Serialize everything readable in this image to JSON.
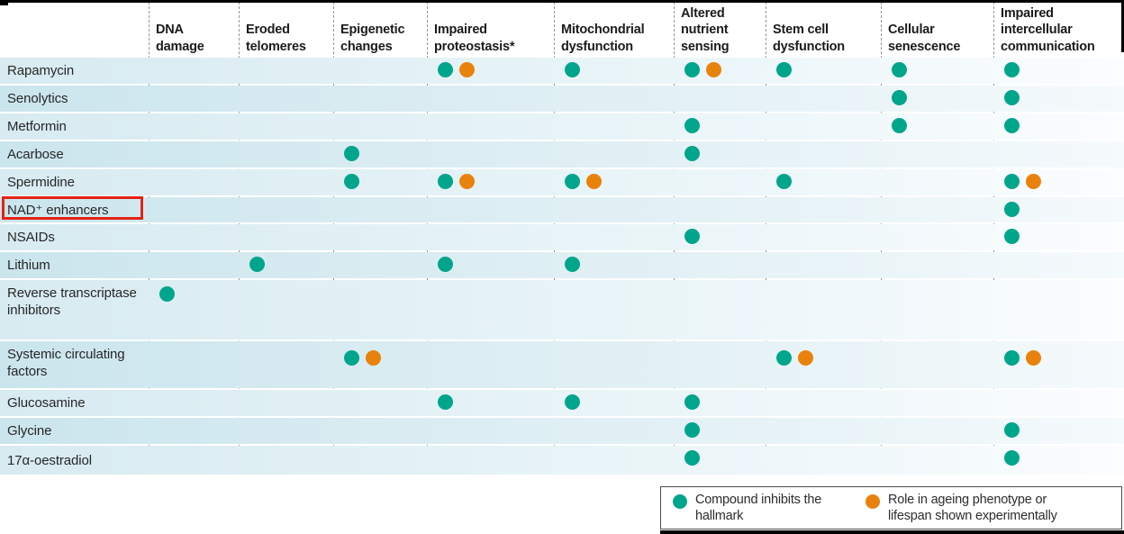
{
  "figure": {
    "description": "Matrix figure of compounds versus hallmarks of ageing, dots mark effects",
    "annotation": "red highlight box around NAD⁺ enhancers row label"
  },
  "colors": {
    "teal": "#00a58c",
    "orange": "#e8820c",
    "highlight_box_red": "#e42313"
  },
  "chart_data": {
    "type": "table",
    "title": "",
    "columns": [
      "DNA damage",
      "Eroded telomeres",
      "Epigenetic changes",
      "Impaired proteostasis*",
      "Mitochondrial dysfunction",
      "Altered nutrient sensing",
      "Stem cell dysfunction",
      "Cellular senescence",
      "Impaired intercellular communication"
    ],
    "rows": [
      {
        "label": "Rapamycin",
        "cells": [
          [],
          [],
          [],
          [
            "inhibits",
            "experimental"
          ],
          [
            "inhibits"
          ],
          [
            "inhibits",
            "experimental"
          ],
          [
            "inhibits"
          ],
          [
            "inhibits"
          ],
          [
            "inhibits"
          ]
        ]
      },
      {
        "label": "Senolytics",
        "cells": [
          [],
          [],
          [],
          [],
          [],
          [],
          [],
          [
            "inhibits"
          ],
          [
            "inhibits"
          ]
        ]
      },
      {
        "label": "Metformin",
        "cells": [
          [],
          [],
          [],
          [],
          [],
          [
            "inhibits"
          ],
          [],
          [
            "inhibits"
          ],
          [
            "inhibits"
          ]
        ]
      },
      {
        "label": "Acarbose",
        "cells": [
          [],
          [],
          [
            "inhibits"
          ],
          [],
          [],
          [
            "inhibits"
          ],
          [],
          [],
          []
        ]
      },
      {
        "label": "Spermidine",
        "cells": [
          [],
          [],
          [
            "inhibits"
          ],
          [
            "inhibits",
            "experimental"
          ],
          [
            "inhibits",
            "experimental"
          ],
          [],
          [
            "inhibits"
          ],
          [],
          [
            "inhibits",
            "experimental"
          ]
        ]
      },
      {
        "label": "NAD⁺ enhancers",
        "highlighted": true,
        "cells": [
          [],
          [],
          [],
          [],
          [],
          [],
          [],
          [],
          [
            "inhibits"
          ]
        ]
      },
      {
        "label": "NSAIDs",
        "cells": [
          [],
          [],
          [],
          [],
          [],
          [
            "inhibits"
          ],
          [],
          [],
          [
            "inhibits"
          ]
        ]
      },
      {
        "label": "Lithium",
        "cells": [
          [],
          [
            "inhibits"
          ],
          [],
          [
            "inhibits"
          ],
          [
            "inhibits"
          ],
          [],
          [],
          [],
          []
        ]
      },
      {
        "label": "Reverse transcriptase inhibitors",
        "cells": [
          [
            "inhibits"
          ],
          [],
          [],
          [],
          [],
          [],
          [],
          [],
          []
        ]
      },
      {
        "label": "Systemic circulating factors",
        "cells": [
          [],
          [],
          [
            "inhibits",
            "experimental"
          ],
          [],
          [],
          [],
          [
            "inhibits",
            "experimental"
          ],
          [],
          [
            "inhibits",
            "experimental"
          ]
        ]
      },
      {
        "label": "Glucosamine",
        "cells": [
          [],
          [],
          [],
          [
            "inhibits"
          ],
          [
            "inhibits"
          ],
          [
            "inhibits"
          ],
          [],
          [],
          []
        ]
      },
      {
        "label": "Glycine",
        "cells": [
          [],
          [],
          [],
          [],
          [],
          [
            "inhibits"
          ],
          [],
          [],
          [
            "inhibits"
          ]
        ]
      },
      {
        "label": "17α-oestradiol",
        "cells": [
          [],
          [],
          [],
          [],
          [],
          [
            "inhibits"
          ],
          [],
          [],
          [
            "inhibits"
          ]
        ]
      }
    ],
    "legend": {
      "position": "bottom-right",
      "items": [
        {
          "key": "inhibits",
          "color": "#00a58c",
          "label": "Compound inhibits the hallmark"
        },
        {
          "key": "experimental",
          "color": "#e8820c",
          "label": "Role in ageing phenotype or lifespan shown experimentally"
        }
      ]
    }
  }
}
